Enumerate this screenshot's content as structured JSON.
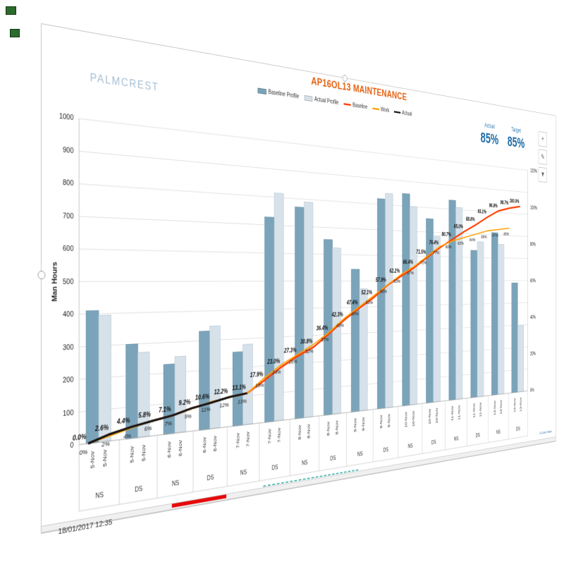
{
  "slide": {
    "logo": "PALMCREST",
    "title": "AP16OL13 MAINTENANCE",
    "timestamp": "18/01/2017 12:35",
    "fine_print": "S-Curve Team",
    "kpis": {
      "actual": {
        "label": "Actual",
        "value": "85%"
      },
      "target": {
        "label": "Target",
        "value": "85%"
      }
    },
    "side_tools": {
      "add": {
        "glyph": "+"
      },
      "style": {
        "glyph": "✎"
      },
      "filter": {
        "glyph": "▼"
      }
    }
  },
  "legend": {
    "items": [
      {
        "label": "Baseline Profile",
        "type": "bar",
        "color": "#7ba4ba"
      },
      {
        "label": "Actual Profile",
        "type": "bar",
        "color": "#d7e1e9"
      },
      {
        "label": "Baseline",
        "type": "line",
        "color": "#ff3c00"
      },
      {
        "label": "Work",
        "type": "line",
        "color": "#ffa000"
      },
      {
        "label": "Actual",
        "type": "line",
        "color": "#161616"
      }
    ]
  },
  "colors": {
    "title": "#e55f0e",
    "logo": "#a6bed2",
    "kpi_blue": "#1b6aa5",
    "bar_baseline": "#7ba4ba",
    "bar_actual": "#d7e1e9",
    "line_baseline": "#ff3c00",
    "line_work": "#ffa000",
    "line_actual": "#161616",
    "scroll_thumb_red": "#e60b0b"
  },
  "chart_data": {
    "type": "combo-bar-line",
    "title": "AP16OL13 MAINTENANCE",
    "ylabel_left": "Man Hours",
    "y_left": {
      "min": 0,
      "max": 1000,
      "step": 100
    },
    "y_right": {
      "min": 0,
      "max": 120,
      "step": 20,
      "format": "percent"
    },
    "grid": true,
    "legend_position": "top",
    "categories": [
      {
        "date": "5-Nov",
        "shift": "NS"
      },
      {
        "date": "5-Nov",
        "shift": "DS"
      },
      {
        "date": "6-Nov",
        "shift": "NS"
      },
      {
        "date": "6-Nov",
        "shift": "DS"
      },
      {
        "date": "7-Nov",
        "shift": "NS"
      },
      {
        "date": "7-Nov",
        "shift": "DS"
      },
      {
        "date": "8-Nov",
        "shift": "NS"
      },
      {
        "date": "8-Nov",
        "shift": "DS"
      },
      {
        "date": "9-Nov",
        "shift": "NS"
      },
      {
        "date": "9-Nov",
        "shift": "DS"
      },
      {
        "date": "10-Nov",
        "shift": "NS"
      },
      {
        "date": "10-Nov",
        "shift": "DS"
      },
      {
        "date": "11-Nov",
        "shift": "NS"
      },
      {
        "date": "11-Nov",
        "shift": "DS"
      },
      {
        "date": "13-Nov",
        "shift": "NS"
      },
      {
        "date": "13-Nov",
        "shift": "DS"
      }
    ],
    "series": [
      {
        "name": "Baseline Profile",
        "type": "bar",
        "axis": "left",
        "values": [
          410,
          300,
          228,
          332,
          255,
          728,
          770,
          655,
          545,
          822,
          850,
          755,
          838,
          630,
          710,
          490
        ]
      },
      {
        "name": "Actual Profile",
        "type": "bar",
        "axis": "left",
        "values": [
          395,
          272,
          252,
          348,
          280,
          815,
          790,
          625,
          470,
          845,
          800,
          685,
          810,
          668,
          660,
          300
        ]
      },
      {
        "name": "Baseline",
        "type": "line",
        "axis": "right",
        "values_pct": [
          0.0,
          2.6,
          4.4,
          5.8,
          7.1,
          9.2,
          10.6,
          12.2,
          13.1,
          17.9,
          23.0,
          27.3,
          30.8,
          36.4,
          42.3,
          47.4,
          52.1,
          57.9,
          62.2,
          66.4,
          71.5,
          76.4,
          80.7,
          85.0,
          88.8,
          93.1,
          96.8,
          98.7,
          100.0
        ]
      },
      {
        "name": "Work",
        "type": "line",
        "axis": "right",
        "values_pct": [
          0,
          2,
          4,
          6,
          7,
          9,
          11,
          12,
          13,
          19,
          24,
          28,
          32,
          37,
          43,
          48,
          53,
          58,
          63,
          67,
          72,
          77,
          80,
          82,
          84,
          86,
          87,
          88
        ]
      },
      {
        "name": "Actual",
        "type": "line",
        "axis": "right",
        "values_pct": [
          0.0,
          2.6,
          4.4,
          5.8,
          7.1,
          9.2,
          10.6,
          12.2,
          13.1
        ]
      }
    ]
  }
}
